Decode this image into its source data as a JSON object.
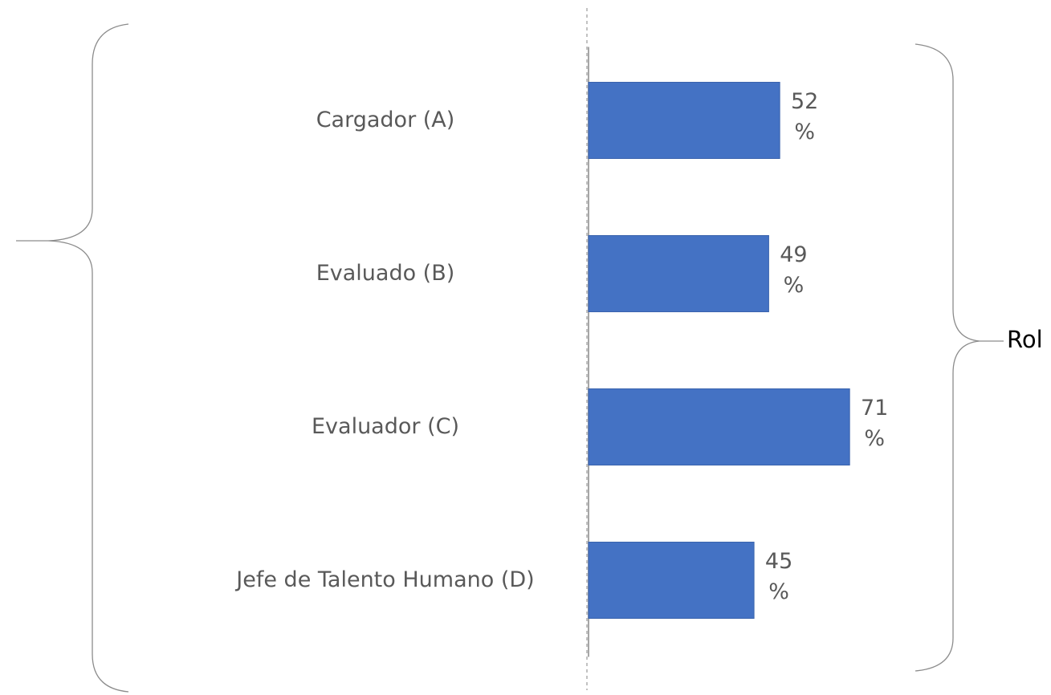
{
  "chart_data": {
    "type": "bar",
    "orientation": "horizontal",
    "categories": [
      "Cargador (A)",
      "Evaluado (B)",
      "Evaluador (C)",
      "Jefe de Talento Humano (D)"
    ],
    "values": [
      52,
      49,
      71,
      45
    ],
    "value_labels": [
      "52 %",
      "49 %",
      "71 %",
      "45 %"
    ],
    "color": "#4472c4",
    "xlim": [
      0,
      100
    ],
    "annotation": "Rol"
  }
}
